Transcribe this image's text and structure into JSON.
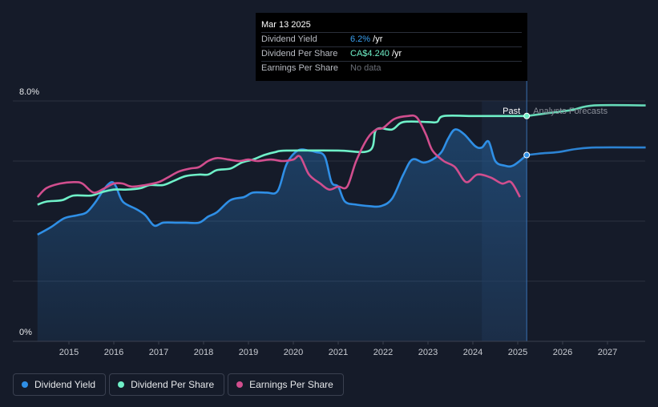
{
  "tooltip": {
    "date": "Mar 13 2025",
    "rows": [
      {
        "label": "Dividend Yield",
        "value": "6.2%",
        "unit": " /yr"
      },
      {
        "label": "Dividend Per Share",
        "value": "CA$4.240",
        "unit": " /yr"
      },
      {
        "label": "Earnings Per Share",
        "value": "No data",
        "unit": ""
      }
    ]
  },
  "labels": {
    "past": "Past",
    "forecast": "Analysts Forecasts"
  },
  "legend": [
    {
      "label": "Dividend Yield",
      "color": "#2f8fe6"
    },
    {
      "label": "Dividend Per Share",
      "color": "#6ff0c8"
    },
    {
      "label": "Earnings Per Share",
      "color": "#d14e8e"
    }
  ],
  "chart_data": {
    "type": "line",
    "title": "",
    "xlabel": "",
    "ylabel": "",
    "ylim": [
      0,
      8
    ],
    "y_tick_labels": [
      "8.0%",
      "0%"
    ],
    "xlim": [
      2014.2,
      2027.85
    ],
    "x_tick_labels": [
      "2015",
      "2016",
      "2017",
      "2018",
      "2019",
      "2020",
      "2021",
      "2022",
      "2023",
      "2024",
      "2025",
      "2026",
      "2027"
    ],
    "forecast_start": 2025.2,
    "highlight_band": [
      2024.2,
      2025.2
    ],
    "grid": true,
    "series": [
      {
        "name": "Dividend Yield",
        "color": "#2f8fe6",
        "area": true,
        "forecast_from": 2025.2,
        "points": [
          [
            2014.3,
            3.55
          ],
          [
            2014.6,
            3.8
          ],
          [
            2014.9,
            4.1
          ],
          [
            2015.2,
            4.2
          ],
          [
            2015.4,
            4.3
          ],
          [
            2015.6,
            4.65
          ],
          [
            2015.8,
            5.1
          ],
          [
            2015.95,
            5.3
          ],
          [
            2016.05,
            5.15
          ],
          [
            2016.2,
            4.65
          ],
          [
            2016.5,
            4.4
          ],
          [
            2016.7,
            4.2
          ],
          [
            2016.9,
            3.85
          ],
          [
            2017.1,
            3.95
          ],
          [
            2017.4,
            3.95
          ],
          [
            2017.6,
            3.95
          ],
          [
            2017.9,
            3.95
          ],
          [
            2018.1,
            4.15
          ],
          [
            2018.3,
            4.3
          ],
          [
            2018.6,
            4.7
          ],
          [
            2018.9,
            4.8
          ],
          [
            2019.1,
            4.95
          ],
          [
            2019.4,
            4.95
          ],
          [
            2019.65,
            5.0
          ],
          [
            2019.85,
            5.9
          ],
          [
            2020.1,
            6.35
          ],
          [
            2020.35,
            6.35
          ],
          [
            2020.5,
            6.3
          ],
          [
            2020.7,
            6.15
          ],
          [
            2020.85,
            5.3
          ],
          [
            2021.0,
            5.15
          ],
          [
            2021.15,
            4.65
          ],
          [
            2021.4,
            4.55
          ],
          [
            2021.7,
            4.5
          ],
          [
            2021.95,
            4.5
          ],
          [
            2022.2,
            4.75
          ],
          [
            2022.45,
            5.55
          ],
          [
            2022.65,
            6.05
          ],
          [
            2022.9,
            5.95
          ],
          [
            2023.1,
            6.05
          ],
          [
            2023.3,
            6.3
          ],
          [
            2023.45,
            6.75
          ],
          [
            2023.6,
            7.05
          ],
          [
            2023.8,
            6.9
          ],
          [
            2024.05,
            6.5
          ],
          [
            2024.2,
            6.45
          ],
          [
            2024.35,
            6.65
          ],
          [
            2024.5,
            6.0
          ],
          [
            2024.7,
            5.85
          ],
          [
            2024.9,
            5.85
          ],
          [
            2025.2,
            6.2
          ],
          [
            2025.5,
            6.25
          ],
          [
            2025.9,
            6.3
          ],
          [
            2026.3,
            6.4
          ],
          [
            2026.75,
            6.45
          ],
          [
            2027.85,
            6.45
          ]
        ]
      },
      {
        "name": "Dividend Per Share",
        "color": "#6ff0c8",
        "area": false,
        "forecast_from": 2025.2,
        "points": [
          [
            2014.3,
            4.55
          ],
          [
            2014.5,
            4.65
          ],
          [
            2014.85,
            4.7
          ],
          [
            2015.1,
            4.85
          ],
          [
            2015.5,
            4.85
          ],
          [
            2015.7,
            4.95
          ],
          [
            2016.0,
            5.05
          ],
          [
            2016.3,
            5.05
          ],
          [
            2016.6,
            5.1
          ],
          [
            2016.8,
            5.2
          ],
          [
            2017.1,
            5.2
          ],
          [
            2017.35,
            5.35
          ],
          [
            2017.6,
            5.5
          ],
          [
            2017.9,
            5.55
          ],
          [
            2018.1,
            5.55
          ],
          [
            2018.3,
            5.7
          ],
          [
            2018.6,
            5.75
          ],
          [
            2018.85,
            5.95
          ],
          [
            2019.1,
            6.05
          ],
          [
            2019.35,
            6.2
          ],
          [
            2019.6,
            6.3
          ],
          [
            2019.85,
            6.35
          ],
          [
            2021.0,
            6.35
          ],
          [
            2021.7,
            6.35
          ],
          [
            2021.85,
            7.05
          ],
          [
            2022.2,
            7.05
          ],
          [
            2022.45,
            7.3
          ],
          [
            2023.0,
            7.3
          ],
          [
            2023.2,
            7.3
          ],
          [
            2023.35,
            7.5
          ],
          [
            2024.0,
            7.5
          ],
          [
            2024.6,
            7.5
          ],
          [
            2025.2,
            7.5
          ],
          [
            2025.7,
            7.6
          ],
          [
            2026.2,
            7.7
          ],
          [
            2026.7,
            7.85
          ],
          [
            2027.85,
            7.85
          ]
        ]
      },
      {
        "name": "Earnings Per Share",
        "color": "#d14e8e",
        "area": false,
        "forecast_from": null,
        "points": [
          [
            2014.3,
            4.8
          ],
          [
            2014.5,
            5.1
          ],
          [
            2014.8,
            5.25
          ],
          [
            2015.1,
            5.3
          ],
          [
            2015.3,
            5.25
          ],
          [
            2015.55,
            4.95
          ],
          [
            2015.8,
            5.1
          ],
          [
            2016.0,
            5.25
          ],
          [
            2016.2,
            5.25
          ],
          [
            2016.4,
            5.15
          ],
          [
            2016.7,
            5.2
          ],
          [
            2017.0,
            5.3
          ],
          [
            2017.2,
            5.45
          ],
          [
            2017.45,
            5.65
          ],
          [
            2017.7,
            5.75
          ],
          [
            2017.9,
            5.8
          ],
          [
            2018.1,
            6.0
          ],
          [
            2018.3,
            6.1
          ],
          [
            2018.55,
            6.05
          ],
          [
            2018.8,
            6.0
          ],
          [
            2019.0,
            6.05
          ],
          [
            2019.2,
            6.0
          ],
          [
            2019.5,
            6.05
          ],
          [
            2019.75,
            6.0
          ],
          [
            2020.0,
            6.05
          ],
          [
            2020.15,
            6.15
          ],
          [
            2020.35,
            5.55
          ],
          [
            2020.6,
            5.25
          ],
          [
            2020.8,
            5.05
          ],
          [
            2021.0,
            5.15
          ],
          [
            2021.2,
            5.15
          ],
          [
            2021.4,
            6.0
          ],
          [
            2021.65,
            6.75
          ],
          [
            2021.85,
            7.05
          ],
          [
            2022.0,
            7.1
          ],
          [
            2022.25,
            7.4
          ],
          [
            2022.55,
            7.5
          ],
          [
            2022.75,
            7.45
          ],
          [
            2022.95,
            6.9
          ],
          [
            2023.1,
            6.35
          ],
          [
            2023.35,
            6.0
          ],
          [
            2023.6,
            5.8
          ],
          [
            2023.85,
            5.3
          ],
          [
            2024.1,
            5.55
          ],
          [
            2024.4,
            5.45
          ],
          [
            2024.65,
            5.25
          ],
          [
            2024.85,
            5.3
          ],
          [
            2025.05,
            4.8
          ]
        ]
      }
    ]
  }
}
